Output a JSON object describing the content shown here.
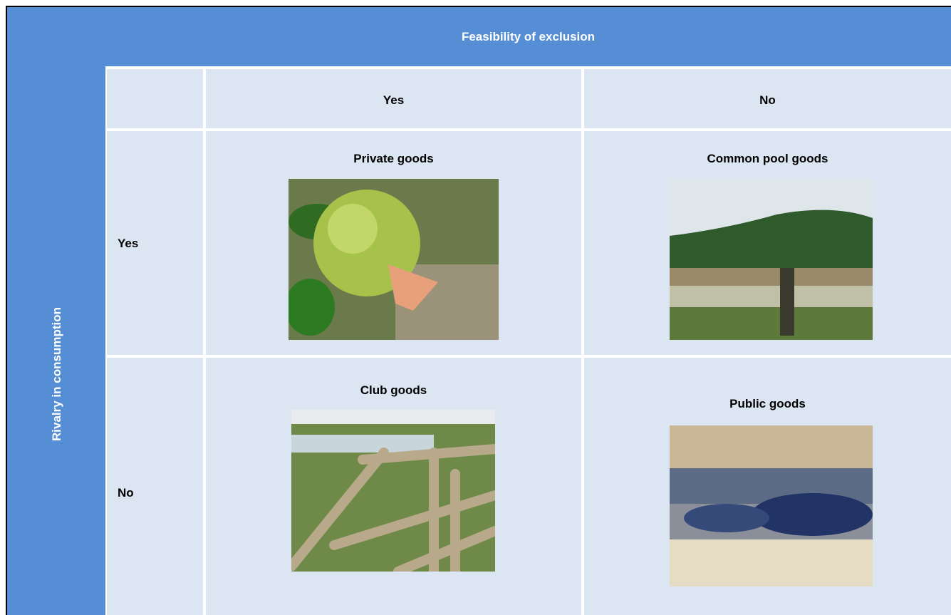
{
  "header": {
    "title": "Feasibility of exclusion"
  },
  "side_label": "Rivalry in consumption",
  "table": {
    "columns": [
      "Yes",
      "No"
    ],
    "rows": [
      {
        "label": "Yes",
        "cells": [
          "Private goods",
          "Common pool goods"
        ]
      },
      {
        "label": "No",
        "cells": [
          "Club goods",
          "Public goods"
        ]
      }
    ]
  }
}
